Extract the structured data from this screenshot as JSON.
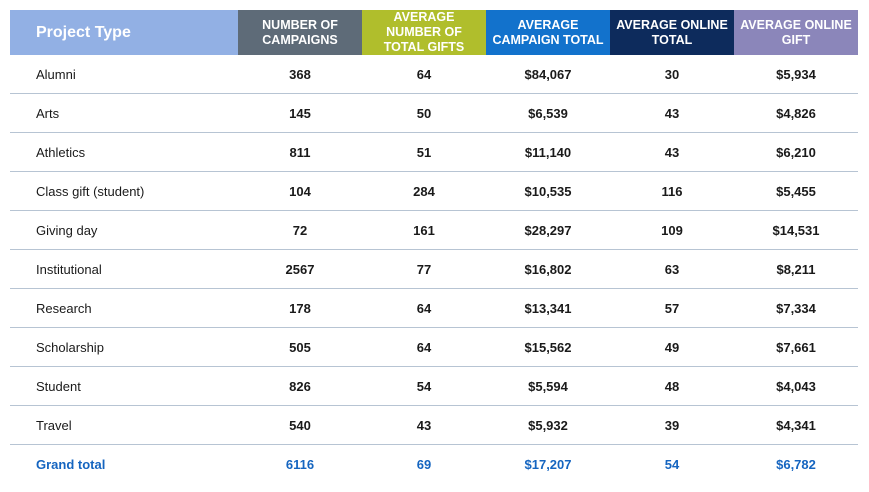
{
  "chart_data": {
    "type": "table",
    "columns": [
      {
        "label": "Project Type",
        "color": "#92b0e4"
      },
      {
        "label": "NUMBER OF CAMPAIGNS",
        "color": "#5e6b78"
      },
      {
        "label": "AVERAGE NUMBER OF TOTAL GIFTS",
        "color": "#b0be2c"
      },
      {
        "label": "AVERAGE CAMPAIGN TOTAL",
        "color": "#1272cc"
      },
      {
        "label": "AVERAGE ONLINE TOTAL",
        "color": "#0d2b5c"
      },
      {
        "label": "AVERAGE ONLINE GIFT",
        "color": "#8b86ba"
      }
    ],
    "rows": [
      [
        "Alumni",
        "368",
        "64",
        "$84,067",
        "30",
        "$5,934"
      ],
      [
        "Arts",
        "145",
        "50",
        "$6,539",
        "43",
        "$4,826"
      ],
      [
        "Athletics",
        "811",
        "51",
        "$11,140",
        "43",
        "$6,210"
      ],
      [
        "Class gift (student)",
        "104",
        "284",
        "$10,535",
        "116",
        "$5,455"
      ],
      [
        "Giving day",
        "72",
        "161",
        "$28,297",
        "109",
        "$14,531"
      ],
      [
        "Institutional",
        "2567",
        "77",
        "$16,802",
        "63",
        "$8,211"
      ],
      [
        "Research",
        "178",
        "64",
        "$13,341",
        "57",
        "$7,334"
      ],
      [
        "Scholarship",
        "505",
        "64",
        "$15,562",
        "49",
        "$7,661"
      ],
      [
        "Student",
        "826",
        "54",
        "$5,594",
        "48",
        "$4,043"
      ],
      [
        "Travel",
        "540",
        "43",
        "$5,932",
        "39",
        "$4,341"
      ]
    ],
    "total": [
      "Grand total",
      "6116",
      "69",
      "$17,207",
      "54",
      "$6,782"
    ],
    "total_color": "#1565c0"
  }
}
